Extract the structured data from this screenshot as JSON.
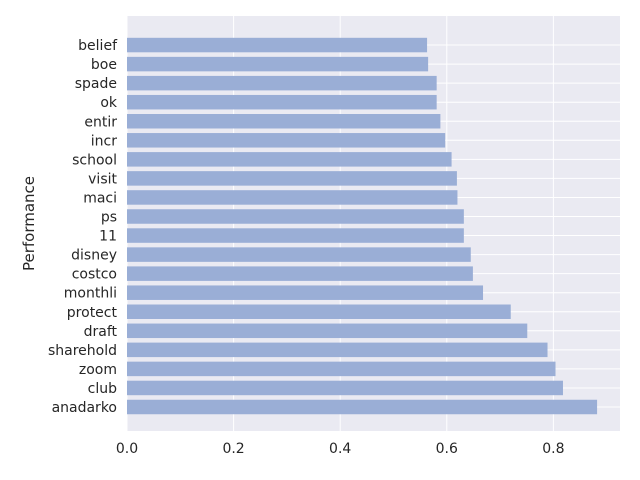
{
  "chart_data": {
    "type": "bar",
    "orientation": "horizontal",
    "categories": [
      "anadarko",
      "club",
      "zoom",
      "sharehold",
      "draft",
      "protect",
      "monthli",
      "costco",
      "disney",
      "11",
      "ps",
      "maci",
      "visit",
      "school",
      "incr",
      "entir",
      "ok",
      "spade",
      "boe",
      "belief"
    ],
    "values": [
      0.882,
      0.818,
      0.804,
      0.789,
      0.751,
      0.72,
      0.668,
      0.649,
      0.645,
      0.632,
      0.632,
      0.62,
      0.619,
      0.609,
      0.597,
      0.588,
      0.581,
      0.581,
      0.565,
      0.563
    ],
    "title": "",
    "xlabel": "",
    "ylabel": "Performance",
    "xlim": [
      0,
      0.925
    ],
    "xticks": [
      0.0,
      0.2,
      0.4,
      0.6,
      0.8
    ],
    "xtick_labels": [
      "0.0",
      "0.2",
      "0.4",
      "0.6",
      "0.8"
    ],
    "grid": true,
    "colors": {
      "background": "#eaeaf2",
      "grid": "#ffffff",
      "bar": "#9aaed6"
    }
  }
}
